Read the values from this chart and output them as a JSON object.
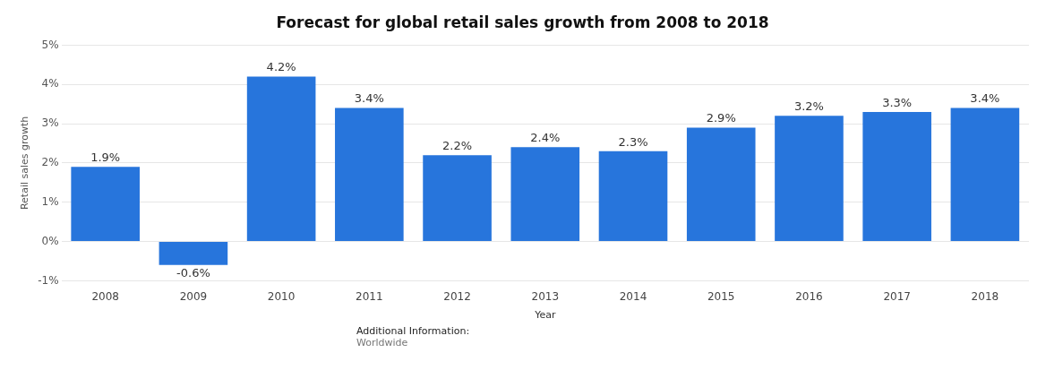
{
  "chart_data": {
    "type": "bar",
    "title": "Forecast for global retail sales growth from 2008 to 2018",
    "xlabel": "Year",
    "ylabel": "Retail sales growth",
    "categories": [
      "2008",
      "2009",
      "2010",
      "2011",
      "2012",
      "2013",
      "2014",
      "2015",
      "2016",
      "2017",
      "2018"
    ],
    "values": [
      1.9,
      -0.6,
      4.2,
      3.4,
      2.2,
      2.4,
      2.3,
      2.9,
      3.2,
      3.3,
      3.4
    ],
    "value_labels": [
      "1.9%",
      "-0.6%",
      "4.2%",
      "3.4%",
      "2.2%",
      "2.4%",
      "2.3%",
      "2.9%",
      "3.2%",
      "3.3%",
      "3.4%"
    ],
    "color": "#2775dc",
    "ylim": [
      -1,
      5
    ],
    "yticks": [
      {
        "value": -1,
        "label": "-1%"
      },
      {
        "value": 0,
        "label": "0%"
      },
      {
        "value": 1,
        "label": "1%"
      },
      {
        "value": 2,
        "label": "2%"
      },
      {
        "value": 3,
        "label": "3%"
      },
      {
        "value": 4,
        "label": "4%"
      },
      {
        "value": 5,
        "label": "5%"
      }
    ],
    "grid": "y",
    "annotations": [
      "Additional Information:",
      "Worldwide"
    ]
  }
}
